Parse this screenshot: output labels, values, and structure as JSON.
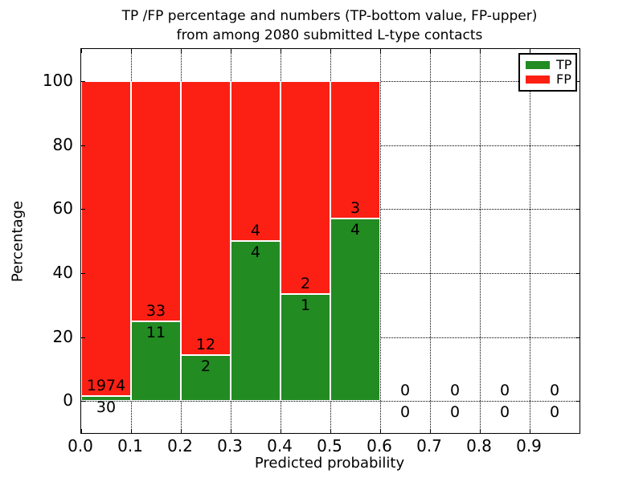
{
  "title": {
    "line1": "TP /FP percentage and numbers (TP-bottom value, FP-upper)",
    "line2": "from among 2080 submitted L-type contacts"
  },
  "colors": {
    "tp_green": "#228b22",
    "fp_red": "#fc2014",
    "axis": "#000000",
    "grid": "#000000",
    "background": "#ffffff"
  },
  "chart_data": {
    "type": "bar",
    "stacked": true,
    "title": "TP /FP percentage and numbers (TP-bottom value, FP-upper)\nfrom among 2080 submitted L-type contacts",
    "xlabel": "Predicted probability",
    "ylabel": "Percentage",
    "xlim": [
      0,
      1.0
    ],
    "ylim": [
      -10,
      110
    ],
    "grid": true,
    "bar_edge_color": "#ffffff",
    "legend": {
      "position": "upper right",
      "entries": [
        {
          "label": "TP",
          "color": "#228b22"
        },
        {
          "label": "FP",
          "color": "#fc2014"
        }
      ]
    },
    "xticks": [
      {
        "label": "0.0",
        "value": 0.0
      },
      {
        "label": "0.1",
        "value": 0.1
      },
      {
        "label": "0.2",
        "value": 0.2
      },
      {
        "label": "0.3",
        "value": 0.3
      },
      {
        "label": "0.4",
        "value": 0.4
      },
      {
        "label": "0.5",
        "value": 0.5
      },
      {
        "label": "0.6",
        "value": 0.6
      },
      {
        "label": "0.7",
        "value": 0.7
      },
      {
        "label": "0.8",
        "value": 0.8
      },
      {
        "label": "0.9",
        "value": 0.9
      }
    ],
    "yticks": [
      {
        "label": "0",
        "value": 0
      },
      {
        "label": "20",
        "value": 20
      },
      {
        "label": "40",
        "value": 40
      },
      {
        "label": "60",
        "value": 60
      },
      {
        "label": "80",
        "value": 80
      },
      {
        "label": "100",
        "value": 100
      }
    ],
    "bins": [
      {
        "range": [
          0.0,
          0.1
        ],
        "tp": 30,
        "fp": 1974
      },
      {
        "range": [
          0.1,
          0.2
        ],
        "tp": 11,
        "fp": 33
      },
      {
        "range": [
          0.2,
          0.3
        ],
        "tp": 2,
        "fp": 12
      },
      {
        "range": [
          0.3,
          0.4
        ],
        "tp": 4,
        "fp": 4
      },
      {
        "range": [
          0.4,
          0.5
        ],
        "tp": 1,
        "fp": 2
      },
      {
        "range": [
          0.5,
          0.6
        ],
        "tp": 4,
        "fp": 3
      },
      {
        "range": [
          0.6,
          0.7
        ],
        "tp": 0,
        "fp": 0
      },
      {
        "range": [
          0.7,
          0.8
        ],
        "tp": 0,
        "fp": 0
      },
      {
        "range": [
          0.8,
          0.9
        ],
        "tp": 0,
        "fp": 0
      },
      {
        "range": [
          0.9,
          1.0
        ],
        "tp": 0,
        "fp": 0
      }
    ]
  }
}
